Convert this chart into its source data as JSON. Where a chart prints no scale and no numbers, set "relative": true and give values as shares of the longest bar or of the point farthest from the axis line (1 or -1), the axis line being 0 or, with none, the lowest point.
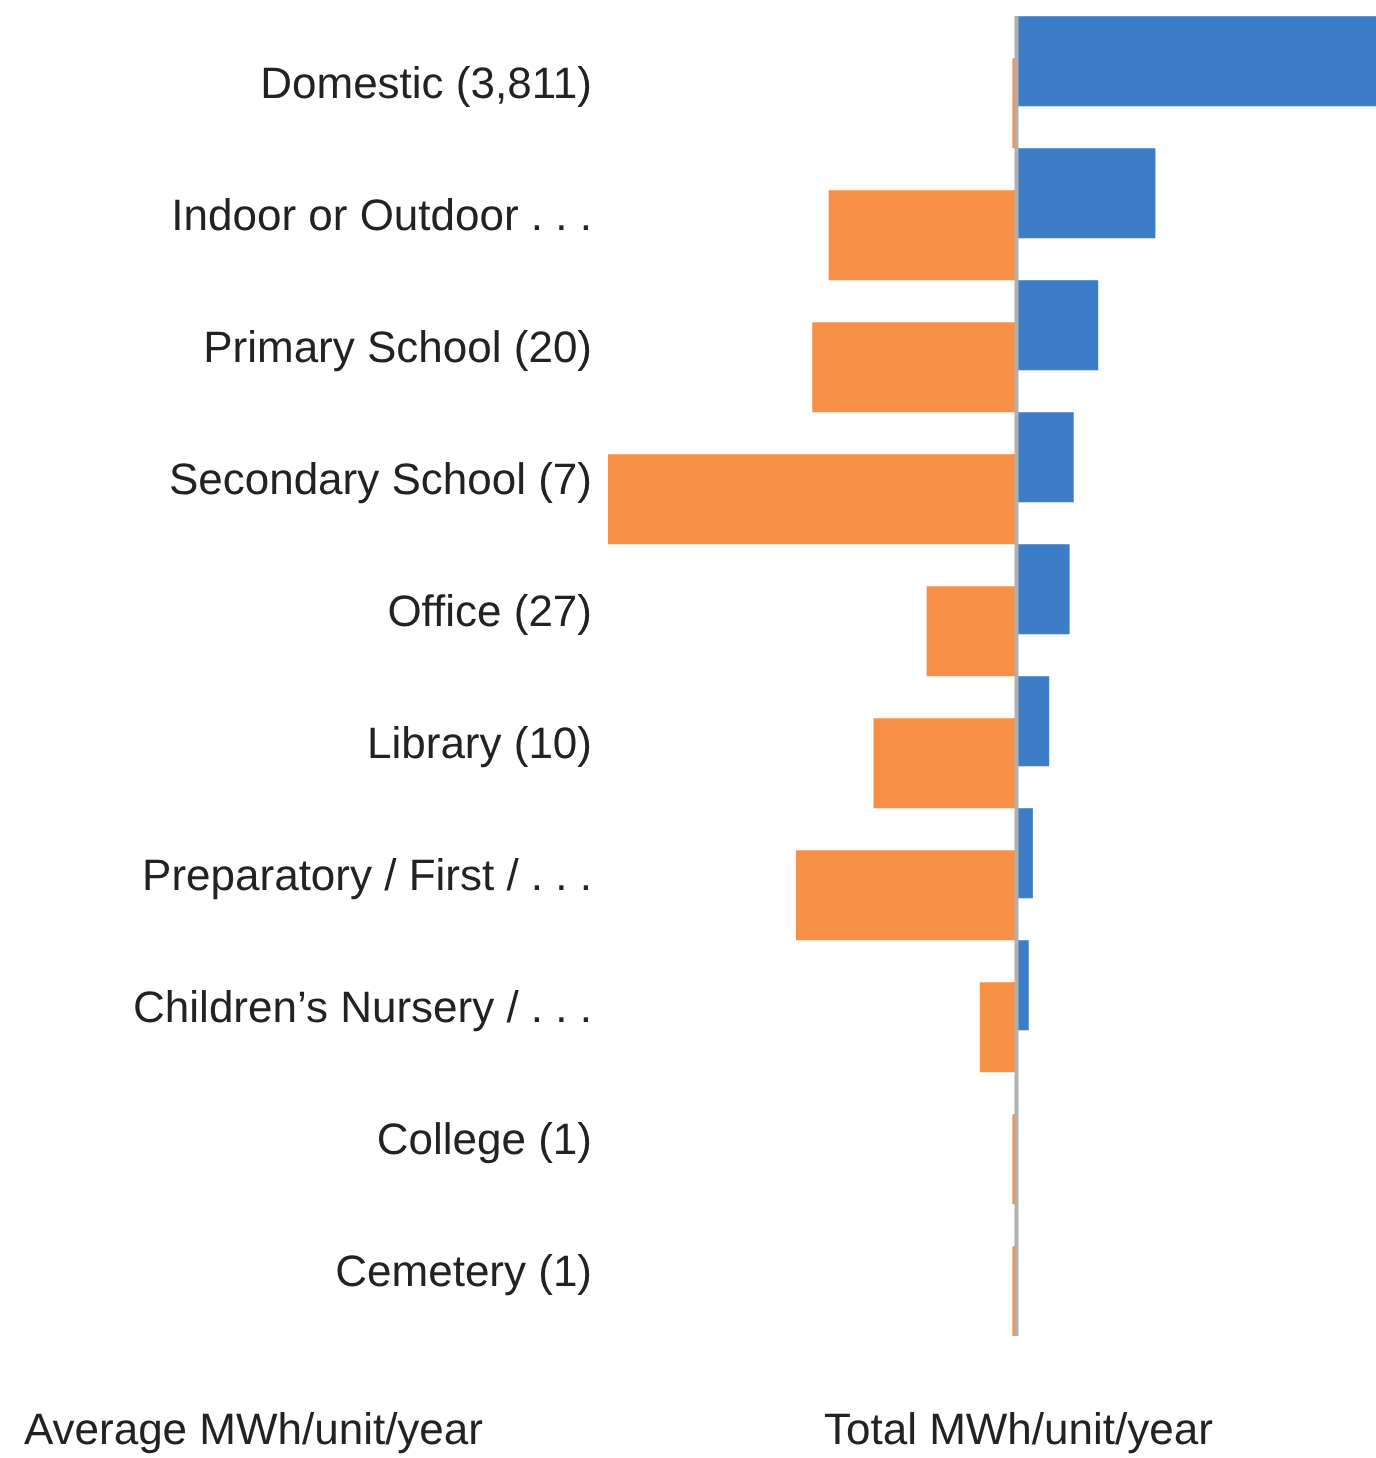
{
  "chart_data": {
    "type": "bar",
    "orientation": "horizontal",
    "relative": true,
    "legend": false,
    "grid": false,
    "categories": [
      "Domestic (3,811)",
      "Indoor or Outdoor . . .",
      "Primary School (20)",
      "Secondary School (7)",
      "Office (27)",
      "Library (10)",
      "Preparatory / First / . . .",
      "Children’s Nursery / . . .",
      "College (1)",
      "Cemetery (1)"
    ],
    "series": [
      {
        "color": "#f79046",
        "values": [
          -0.01,
          -0.46,
          -0.5,
          -1,
          -0.22,
          -0.35,
          -0.54,
          -0.09,
          -0.01,
          -0.01
        ]
      },
      {
        "color": "#3d7dc8",
        "values": [
          0.88,
          0.34,
          0.2,
          0.14,
          0.13,
          0.08,
          0.04,
          0.03,
          0,
          0
        ]
      }
    ],
    "annotations": [
      "Average MWh/unit/year",
      "Total MWh/unit/year"
    ]
  }
}
